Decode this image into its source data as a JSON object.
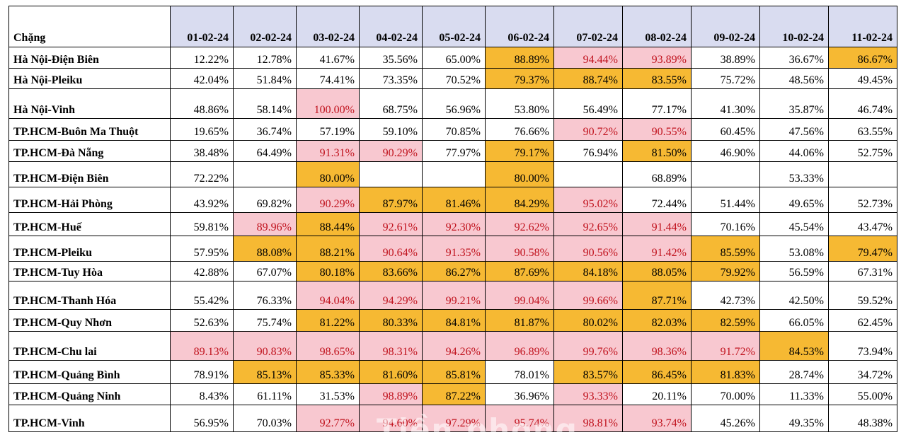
{
  "header": {
    "route_label": "Chặng",
    "dates": [
      "01-02-24",
      "02-02-24",
      "03-02-24",
      "04-02-24",
      "05-02-24",
      "06-02-24",
      "07-02-24",
      "08-02-24",
      "09-02-24",
      "10-02-24",
      "11-02-24"
    ]
  },
  "colors": {
    "header_bg": "#d9dcf0",
    "pink_bg": "#f8c8d0",
    "pink_text": "#c0121d",
    "orange_bg": "#f6b933"
  },
  "rows": [
    {
      "route": "Hà Nội-Điện Biên",
      "values": [
        "12.22%",
        "12.78%",
        "41.67%",
        "35.56%",
        "65.00%",
        "88.89%",
        "94.44%",
        "93.89%",
        "38.89%",
        "36.67%",
        "86.67%"
      ],
      "styles": [
        "",
        "",
        "",
        "",
        "",
        "o",
        "p",
        "p",
        "",
        "",
        "o"
      ]
    },
    {
      "route": "Hà Nội-Pleiku",
      "values": [
        "42.04%",
        "51.84%",
        "74.41%",
        "73.35%",
        "70.52%",
        "79.37%",
        "88.74%",
        "83.55%",
        "75.72%",
        "48.56%",
        "49.45%"
      ],
      "styles": [
        "",
        "",
        "",
        "",
        "",
        "o",
        "o",
        "o",
        "",
        "",
        ""
      ]
    },
    {
      "route": "Hà Nội-Vinh",
      "values": [
        "48.86%",
        "58.14%",
        "100.00%",
        "68.75%",
        "56.96%",
        "53.80%",
        "56.49%",
        "77.17%",
        "41.30%",
        "35.87%",
        "46.74%"
      ],
      "styles": [
        "",
        "",
        "p",
        "",
        "",
        "",
        "",
        "",
        "",
        "",
        ""
      ]
    },
    {
      "route": "TP.HCM-Buôn Ma Thuột",
      "values": [
        "19.65%",
        "36.74%",
        "57.19%",
        "59.10%",
        "70.85%",
        "76.66%",
        "90.72%",
        "90.55%",
        "60.45%",
        "47.56%",
        "63.55%"
      ],
      "styles": [
        "",
        "",
        "",
        "",
        "",
        "",
        "p",
        "p",
        "",
        "",
        ""
      ]
    },
    {
      "route": "TP.HCM-Đà Nẵng",
      "values": [
        "38.48%",
        "64.49%",
        "91.31%",
        "90.29%",
        "77.97%",
        "79.17%",
        "76.94%",
        "81.50%",
        "46.90%",
        "44.06%",
        "52.75%"
      ],
      "styles": [
        "",
        "",
        "p",
        "p",
        "",
        "o",
        "",
        "o",
        "",
        "",
        ""
      ]
    },
    {
      "route": "TP.HCM-Điện Biên",
      "values": [
        "72.22%",
        "",
        "80.00%",
        "",
        "",
        "80.00%",
        "",
        "68.89%",
        "",
        "53.33%",
        ""
      ],
      "styles": [
        "",
        "",
        "o",
        "",
        "",
        "o",
        "",
        "",
        "",
        "",
        ""
      ]
    },
    {
      "route": "TP.HCM-Hải Phòng",
      "values": [
        "43.92%",
        "69.82%",
        "90.29%",
        "87.97%",
        "81.46%",
        "84.29%",
        "95.02%",
        "72.44%",
        "51.44%",
        "49.65%",
        "52.73%"
      ],
      "styles": [
        "",
        "",
        "p",
        "o",
        "o",
        "o",
        "p",
        "",
        "",
        "",
        ""
      ]
    },
    {
      "route": "TP.HCM-Huế",
      "values": [
        "59.81%",
        "89.96%",
        "88.44%",
        "92.61%",
        "92.30%",
        "92.62%",
        "92.65%",
        "91.44%",
        "70.16%",
        "45.54%",
        "43.47%"
      ],
      "styles": [
        "",
        "p",
        "o",
        "p",
        "p",
        "p",
        "p",
        "p",
        "",
        "",
        ""
      ]
    },
    {
      "route": "TP.HCM-Pleiku",
      "values": [
        "57.95%",
        "88.08%",
        "88.21%",
        "90.64%",
        "91.35%",
        "90.58%",
        "90.56%",
        "91.42%",
        "85.59%",
        "53.08%",
        "79.47%"
      ],
      "styles": [
        "",
        "o",
        "o",
        "p",
        "p",
        "p",
        "p",
        "p",
        "o",
        "",
        "o"
      ]
    },
    {
      "route": "TP.HCM-Tuy Hòa",
      "values": [
        "42.88%",
        "67.07%",
        "80.18%",
        "83.66%",
        "86.27%",
        "87.69%",
        "84.18%",
        "88.05%",
        "79.92%",
        "56.59%",
        "67.31%"
      ],
      "styles": [
        "",
        "",
        "o",
        "o",
        "o",
        "o",
        "o",
        "o",
        "o",
        "",
        ""
      ]
    },
    {
      "route": "TP.HCM-Thanh Hóa",
      "values": [
        "55.42%",
        "76.33%",
        "94.04%",
        "94.29%",
        "99.21%",
        "99.04%",
        "99.66%",
        "87.71%",
        "42.73%",
        "42.50%",
        "59.52%"
      ],
      "styles": [
        "",
        "",
        "p",
        "p",
        "p",
        "p",
        "p",
        "o",
        "",
        "",
        ""
      ]
    },
    {
      "route": "TP.HCM-Quy Nhơn",
      "values": [
        "52.63%",
        "75.74%",
        "81.22%",
        "80.33%",
        "84.81%",
        "81.87%",
        "80.02%",
        "82.03%",
        "82.59%",
        "66.05%",
        "62.45%"
      ],
      "styles": [
        "",
        "",
        "o",
        "o",
        "o",
        "o",
        "o",
        "o",
        "o",
        "",
        ""
      ]
    },
    {
      "route": "TP.HCM-Chu lai",
      "values": [
        "89.13%",
        "90.83%",
        "98.65%",
        "98.31%",
        "94.26%",
        "96.89%",
        "99.76%",
        "98.36%",
        "91.72%",
        "84.53%",
        "73.94%"
      ],
      "styles": [
        "p",
        "p",
        "p",
        "p",
        "p",
        "p",
        "p",
        "p",
        "p",
        "o",
        ""
      ]
    },
    {
      "route": "TP.HCM-Quảng Bình",
      "values": [
        "78.91%",
        "85.13%",
        "85.33%",
        "81.60%",
        "85.81%",
        "78.01%",
        "83.57%",
        "86.45%",
        "81.83%",
        "28.74%",
        "34.72%"
      ],
      "styles": [
        "",
        "o",
        "o",
        "o",
        "o",
        "",
        "o",
        "o",
        "o",
        "",
        ""
      ]
    },
    {
      "route": "TP.HCM-Quảng Ninh",
      "values": [
        "8.43%",
        "61.11%",
        "31.53%",
        "98.89%",
        "87.22%",
        "36.96%",
        "93.33%",
        "20.11%",
        "70.00%",
        "11.33%",
        "55.00%"
      ],
      "styles": [
        "",
        "",
        "",
        "p",
        "o",
        "",
        "p",
        "",
        "",
        "",
        ""
      ]
    },
    {
      "route": "TP.HCM-Vinh",
      "values": [
        "56.95%",
        "70.03%",
        "92.77%",
        "94.60%",
        "97.29%",
        "95.74%",
        "98.81%",
        "93.74%",
        "45.26%",
        "49.35%",
        "48.38%"
      ],
      "styles": [
        "",
        "",
        "p",
        "p",
        "p",
        "p",
        "p",
        "p",
        "",
        "",
        ""
      ]
    }
  ]
}
